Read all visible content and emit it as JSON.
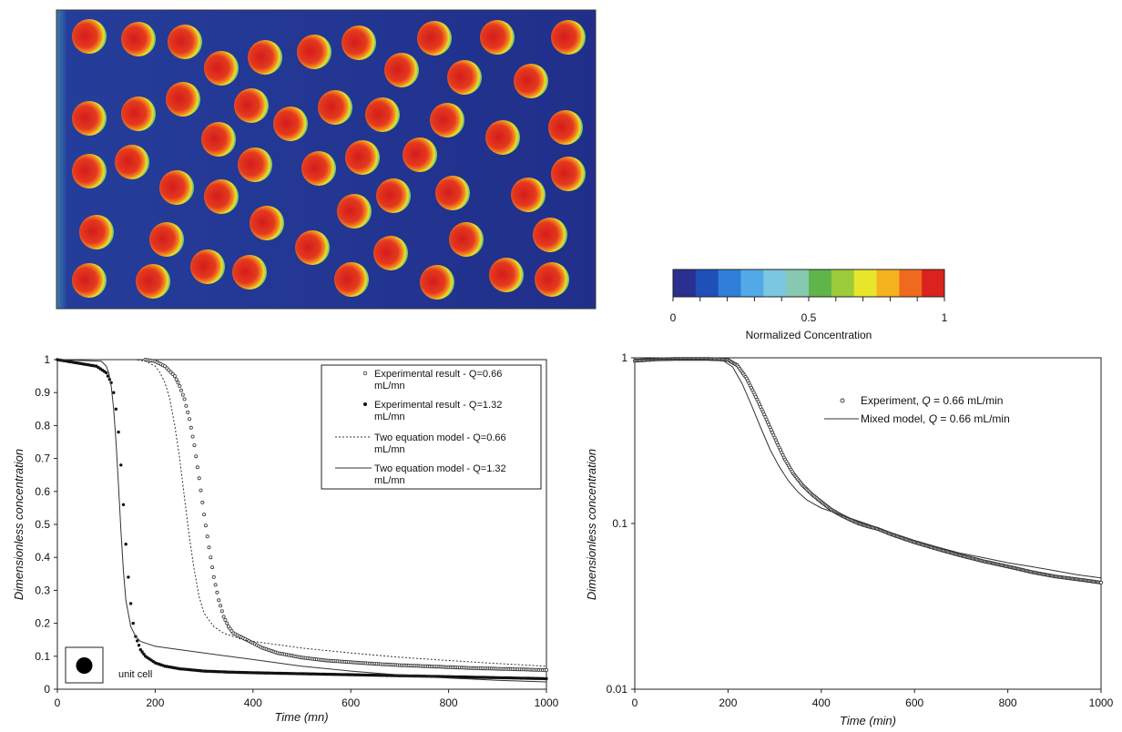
{
  "colorbar": {
    "label": "Normalized Concentration",
    "ticks": [
      "0",
      "0.5",
      "1"
    ],
    "colors": [
      "#2b2f8f",
      "#1f4fb8",
      "#2f7fd8",
      "#52a9e8",
      "#7cc7e0",
      "#86c9b0",
      "#5fb44a",
      "#9ccc3a",
      "#e8e62a",
      "#f5b21f",
      "#ef6a1e",
      "#d9231c"
    ]
  },
  "chart_data": [
    {
      "type": "line",
      "xlabel": "Time (mn)",
      "ylabel": "Dimensionless concentration",
      "xlim": [
        0,
        1000
      ],
      "ylim": [
        0,
        1
      ],
      "xticks": [
        "0",
        "200",
        "400",
        "600",
        "800",
        "1000"
      ],
      "yticks": [
        "0",
        "0.1",
        "0.2",
        "0.3",
        "0.4",
        "0.5",
        "0.6",
        "0.7",
        "0.8",
        "0.9",
        "1"
      ],
      "legend_position": "top-right",
      "inset_label": "unit cell",
      "series": [
        {
          "name": "Experimental result - Q=0.66 mL/mn",
          "style": "open-circles",
          "x": [
            180,
            200,
            220,
            240,
            250,
            260,
            270,
            280,
            290,
            300,
            310,
            320,
            330,
            340,
            350,
            360,
            380,
            400,
            420,
            450,
            500,
            550,
            600,
            650,
            700,
            750,
            800,
            850,
            900,
            950,
            1000
          ],
          "y": [
            1.0,
            0.995,
            0.98,
            0.95,
            0.92,
            0.88,
            0.82,
            0.74,
            0.64,
            0.53,
            0.43,
            0.34,
            0.27,
            0.22,
            0.19,
            0.17,
            0.155,
            0.14,
            0.125,
            0.11,
            0.096,
            0.087,
            0.082,
            0.077,
            0.073,
            0.07,
            0.067,
            0.064,
            0.062,
            0.06,
            0.058
          ]
        },
        {
          "name": "Experimental result - Q=1.32 mL/mn",
          "style": "filled-dots",
          "x": [
            0,
            40,
            80,
            100,
            110,
            115,
            120,
            125,
            130,
            135,
            140,
            145,
            150,
            155,
            160,
            170,
            180,
            200,
            220,
            250,
            300,
            350,
            400,
            500,
            600,
            700,
            800,
            900,
            1000
          ],
          "y": [
            1.0,
            0.99,
            0.98,
            0.96,
            0.93,
            0.9,
            0.85,
            0.78,
            0.68,
            0.56,
            0.44,
            0.34,
            0.26,
            0.2,
            0.16,
            0.12,
            0.1,
            0.08,
            0.07,
            0.062,
            0.055,
            0.052,
            0.05,
            0.047,
            0.044,
            0.041,
            0.038,
            0.035,
            0.032
          ]
        },
        {
          "name": "Two equation model - Q=0.66 mL/mn",
          "style": "dashed",
          "x": [
            0,
            160,
            180,
            200,
            210,
            220,
            230,
            240,
            250,
            260,
            270,
            280,
            290,
            300,
            320,
            340,
            360,
            380,
            400,
            450,
            500,
            600,
            700,
            800,
            900,
            1000
          ],
          "y": [
            1.0,
            1.0,
            0.995,
            0.98,
            0.96,
            0.93,
            0.88,
            0.8,
            0.7,
            0.58,
            0.46,
            0.36,
            0.28,
            0.23,
            0.19,
            0.17,
            0.16,
            0.15,
            0.145,
            0.135,
            0.125,
            0.11,
            0.097,
            0.087,
            0.078,
            0.07
          ]
        },
        {
          "name": "Two equation model - Q=1.32 mL/mn",
          "style": "solid",
          "x": [
            0,
            90,
            100,
            105,
            110,
            115,
            120,
            125,
            130,
            135,
            140,
            150,
            160,
            170,
            180,
            200,
            300,
            400,
            500,
            600,
            700,
            800,
            900,
            1000
          ],
          "y": [
            1.0,
            0.995,
            0.98,
            0.96,
            0.92,
            0.85,
            0.75,
            0.62,
            0.48,
            0.36,
            0.27,
            0.19,
            0.16,
            0.145,
            0.14,
            0.13,
            0.11,
            0.09,
            0.07,
            0.055,
            0.043,
            0.034,
            0.027,
            0.022
          ]
        }
      ]
    },
    {
      "type": "line",
      "xlabel": "Time (min)",
      "ylabel": "Dimensionless concentration",
      "xlim": [
        0,
        1000
      ],
      "ylim": [
        0.01,
        1
      ],
      "yscale": "log",
      "xticks": [
        "0",
        "200",
        "400",
        "600",
        "800",
        "1000"
      ],
      "yticks": [
        "0.01",
        "0.1",
        "1"
      ],
      "legend_position": "top-right",
      "series": [
        {
          "name": "Experiment, Q = 0.66 mL/min",
          "style": "open-circles",
          "x": [
            0,
            50,
            100,
            150,
            180,
            200,
            220,
            240,
            260,
            280,
            300,
            320,
            340,
            360,
            380,
            400,
            420,
            440,
            460,
            480,
            500,
            520,
            550,
            600,
            650,
            700,
            750,
            800,
            850,
            900,
            950,
            1000
          ],
          "y": [
            0.96,
            0.98,
            0.985,
            0.985,
            0.98,
            0.97,
            0.9,
            0.75,
            0.58,
            0.44,
            0.33,
            0.25,
            0.2,
            0.17,
            0.15,
            0.135,
            0.122,
            0.113,
            0.106,
            0.1,
            0.096,
            0.093,
            0.086,
            0.077,
            0.07,
            0.064,
            0.059,
            0.055,
            0.051,
            0.048,
            0.046,
            0.044
          ]
        },
        {
          "name": "Mixed model, Q = 0.66 mL/min",
          "style": "solid",
          "x": [
            0,
            150,
            190,
            210,
            230,
            250,
            270,
            290,
            310,
            330,
            350,
            370,
            400,
            430,
            460,
            500,
            550,
            600,
            650,
            700,
            750,
            800,
            850,
            900,
            950,
            1000
          ],
          "y": [
            0.98,
            0.98,
            0.96,
            0.88,
            0.7,
            0.52,
            0.38,
            0.28,
            0.22,
            0.18,
            0.155,
            0.138,
            0.124,
            0.116,
            0.108,
            0.099,
            0.088,
            0.079,
            0.072,
            0.066,
            0.062,
            0.058,
            0.055,
            0.052,
            0.049,
            0.047
          ]
        }
      ]
    }
  ]
}
